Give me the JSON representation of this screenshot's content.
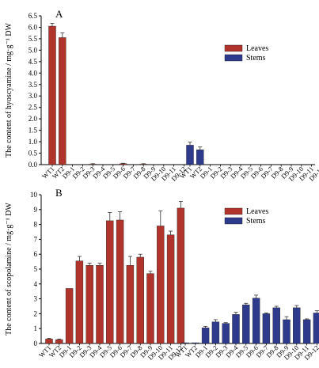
{
  "chart_data": [
    {
      "type": "bar",
      "panel_label": "A",
      "ylabel": "The content of hyoscyamine / mg·g⁻¹ DW",
      "ylim": [
        0,
        6.5
      ],
      "yticks": [
        "0.0",
        "0.5",
        "1.0",
        "1.5",
        "2.0",
        "2.5",
        "3.0",
        "3.5",
        "4.0",
        "4.5",
        "5.0",
        "5.5",
        "6.0",
        "6.5"
      ],
      "categories": [
        "WT1",
        "WT2",
        "D9-1",
        "D9-2",
        "D9-3",
        "D9-4",
        "D9-5",
        "D9-6",
        "D9-7",
        "D9-8",
        "D9-9",
        "D9-10",
        "D9-11",
        "D9-12"
      ],
      "legend_position": "upper-right",
      "grid": false,
      "series": [
        {
          "name": "Leaves",
          "color": "#b0342b",
          "values": [
            6.05,
            5.55,
            0.0,
            0.0,
            0.02,
            0.0,
            0.0,
            0.04,
            0.0,
            0.02,
            0.0,
            0.0,
            0.0,
            0.0
          ],
          "errors": [
            0.12,
            0.2,
            0.0,
            0.0,
            0.02,
            0.0,
            0.0,
            0.02,
            0.0,
            0.02,
            0.0,
            0.0,
            0.0,
            0.0
          ]
        },
        {
          "name": "Stems",
          "color": "#2e3a8c",
          "values": [
            0.85,
            0.65,
            0.0,
            0.0,
            0.0,
            0.0,
            0.0,
            0.0,
            0.0,
            0.0,
            0.0,
            0.0,
            0.0,
            0.0
          ],
          "errors": [
            0.13,
            0.12,
            0.0,
            0.0,
            0.0,
            0.0,
            0.0,
            0.0,
            0.0,
            0.0,
            0.0,
            0.0,
            0.0,
            0.0
          ]
        }
      ]
    },
    {
      "type": "bar",
      "panel_label": "B",
      "ylabel": "The content of scopolamine / mg·g⁻¹ DW",
      "ylim": [
        0,
        10
      ],
      "yticks": [
        "0",
        "1",
        "2",
        "3",
        "4",
        "5",
        "6",
        "7",
        "8",
        "9",
        "10"
      ],
      "categories": [
        "WT1",
        "WT2",
        "D9-1",
        "D9-2",
        "D9-3",
        "D9-4",
        "D9-5",
        "D9-6",
        "D9-7",
        "D9-8",
        "D9-9",
        "D9-10",
        "D9-11",
        "D9-12"
      ],
      "legend_position": "upper-right",
      "grid": false,
      "series": [
        {
          "name": "Leaves",
          "color": "#b0342b",
          "values": [
            0.3,
            0.25,
            3.7,
            5.55,
            5.25,
            5.25,
            8.25,
            8.3,
            5.25,
            5.8,
            4.7,
            7.9,
            7.3,
            9.1
          ],
          "errors": [
            0.05,
            0.05,
            0.0,
            0.3,
            0.15,
            0.15,
            0.55,
            0.55,
            0.6,
            0.2,
            0.15,
            1.0,
            0.25,
            0.45
          ]
        },
        {
          "name": "Stems",
          "color": "#2e3a8c",
          "values": [
            0.05,
            0.05,
            1.05,
            1.45,
            1.35,
            1.95,
            2.6,
            3.05,
            2.0,
            2.4,
            1.6,
            2.4,
            1.6,
            2.05
          ],
          "errors": [
            0.0,
            0.0,
            0.1,
            0.15,
            0.05,
            0.15,
            0.1,
            0.2,
            0.05,
            0.1,
            0.2,
            0.15,
            0.05,
            0.15
          ]
        }
      ]
    }
  ]
}
